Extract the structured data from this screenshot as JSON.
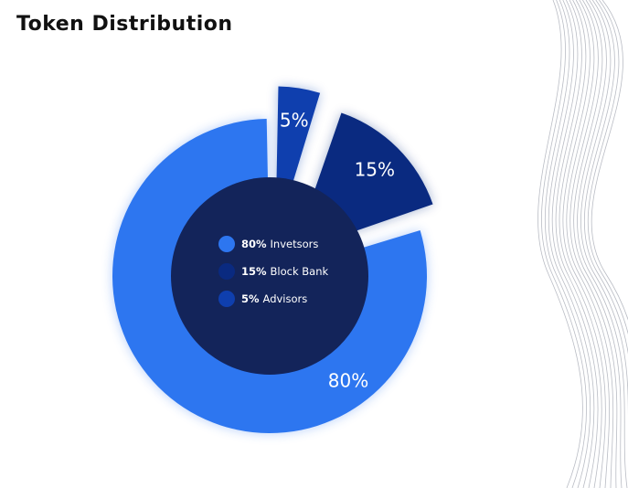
{
  "title": "Token Distribution",
  "chart_data": {
    "type": "pie",
    "style": "exploded-donut",
    "title": "Token Distribution",
    "slices": [
      {
        "label": "80%",
        "value": 80,
        "legend_pct": "80%",
        "legend_name": "Invetsors",
        "color": "#2d76f0"
      },
      {
        "label": "15%",
        "value": 15,
        "legend_pct": "15%",
        "legend_name": "Block Bank",
        "color": "#0a2a80"
      },
      {
        "label": "5%",
        "value": 5,
        "legend_pct": "5%",
        "legend_name": "Advisors",
        "color": "#0f3fae"
      }
    ],
    "center_color": "#13245a",
    "legend_placement": "center"
  }
}
